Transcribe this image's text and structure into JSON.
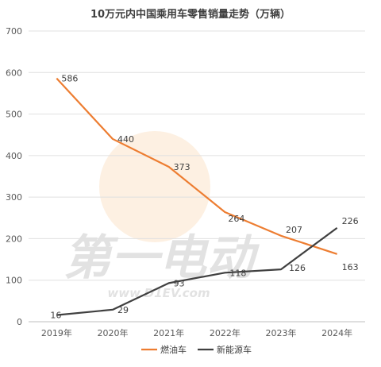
{
  "chart_data": {
    "type": "line",
    "title": "10万元内中国乘用车零售销量走势（万辆）",
    "categories": [
      "2019年",
      "2020年",
      "2021年",
      "2022年",
      "2023年",
      "2024年"
    ],
    "series": [
      {
        "name": "燃油车",
        "color": "#ED7D31",
        "values": [
          586,
          440,
          373,
          264,
          207,
          163
        ]
      },
      {
        "name": "新能源车",
        "color": "#404040",
        "values": [
          16,
          29,
          93,
          118,
          126,
          226
        ]
      }
    ],
    "ylim": [
      0,
      700
    ],
    "yticks": [
      0,
      100,
      200,
      300,
      400,
      500,
      600,
      700
    ],
    "grid": true,
    "legend_position": "bottom"
  },
  "watermark": {
    "text": "www.D1EV.com",
    "brand": "第一电动"
  }
}
